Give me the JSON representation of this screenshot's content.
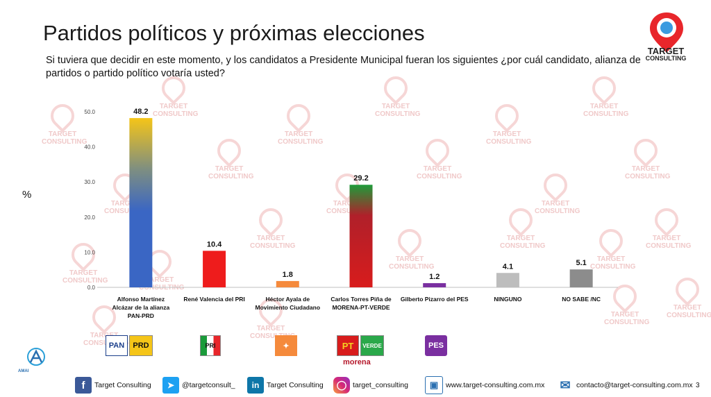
{
  "title": "Partidos políticos y próximas elecciones",
  "question": "Si tuviera que decidir en este momento, y los candidatos a Presidente Municipal fueran los siguientes ¿por cuál candidato, alianza de partidos o partido político votaría usted?",
  "logo": {
    "line1": "TARGET",
    "line2": "CONSULTING"
  },
  "watermark": "TARGET CONSULTING",
  "chart_data": {
    "type": "bar",
    "ylabel": "%",
    "ylim": [
      0,
      50
    ],
    "yticks": [
      "0.0",
      "10.0",
      "20.0",
      "30.0",
      "40.0",
      "50.0"
    ],
    "categories": [
      [
        "Alfonso Martínez",
        "Alcázar de la alianza",
        "PAN-PRD"
      ],
      [
        "René Valencia del PRI"
      ],
      [
        "Héctor Ayala de",
        "Movimiento Ciudadano"
      ],
      [
        "Carlos Torres Piña de",
        "MORENA-PT-VERDE"
      ],
      [
        "Gilberto Pizarro del PES"
      ],
      [
        "NINGUNO"
      ],
      [
        "NO SABE /NC"
      ]
    ],
    "values": [
      48.2,
      10.4,
      1.8,
      29.2,
      1.2,
      4.1,
      5.1
    ],
    "value_labels": [
      "48.2",
      "10.4",
      "1.8",
      "29.2",
      "1.2",
      "4.1",
      "5.1"
    ],
    "colors": [
      "#3a66c4",
      "#ee1c1c",
      "#f58a3c",
      "#d82222",
      "#7a2fa0",
      "#bdbdbd",
      "#8c8c8c"
    ],
    "grid": false,
    "legend": "none"
  },
  "party_logos": {
    "pan": "PAN",
    "prd": "PRD",
    "pri": "PRI",
    "pt": "PT",
    "verde": "VERDE",
    "pes": "PES",
    "morena": "morena"
  },
  "footer": {
    "facebook": "Target Consulting",
    "twitter": "@targetconsult_",
    "linkedin": "Target Consulting",
    "instagram": "target_consulting",
    "web": "www.target-consulting.com.mx",
    "email": "contacto@target-consulting.com.mx",
    "page": "3",
    "amai": "AMAI"
  },
  "colors": {
    "accent": "#e8262b",
    "blue": "#2a6fb0"
  }
}
